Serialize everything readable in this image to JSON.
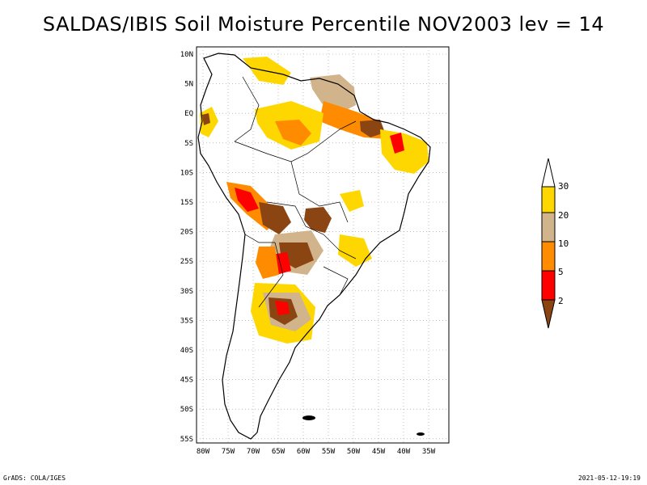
{
  "title": "SALDAS/IBIS Soil Moisture Percentile NOV2003 lev = 14",
  "axes": {
    "lat_labels": [
      "10N",
      "5N",
      "EQ",
      "5S",
      "10S",
      "15S",
      "20S",
      "25S",
      "30S",
      "35S",
      "40S",
      "45S",
      "50S",
      "55S"
    ],
    "lon_labels": [
      "80W",
      "75W",
      "70W",
      "65W",
      "60W",
      "55W",
      "50W",
      "45W",
      "40W",
      "35W"
    ],
    "lat_range": [
      -56,
      11
    ],
    "lon_range": [
      -81,
      -34
    ],
    "grid": "dotted"
  },
  "colorbar": {
    "labels": [
      "30",
      "20",
      "10",
      "5",
      "2"
    ],
    "colors": {
      "above_30": "#ffffff",
      "20_30": "#ffd700",
      "10_20": "#d2b48c",
      "5_10": "#ff8c00",
      "2_5": "#ff0000",
      "below_2": "#8b4513"
    }
  },
  "footer": {
    "left": "GrADS: COLA/IGES",
    "right": "2021-05-12-19:19"
  }
}
